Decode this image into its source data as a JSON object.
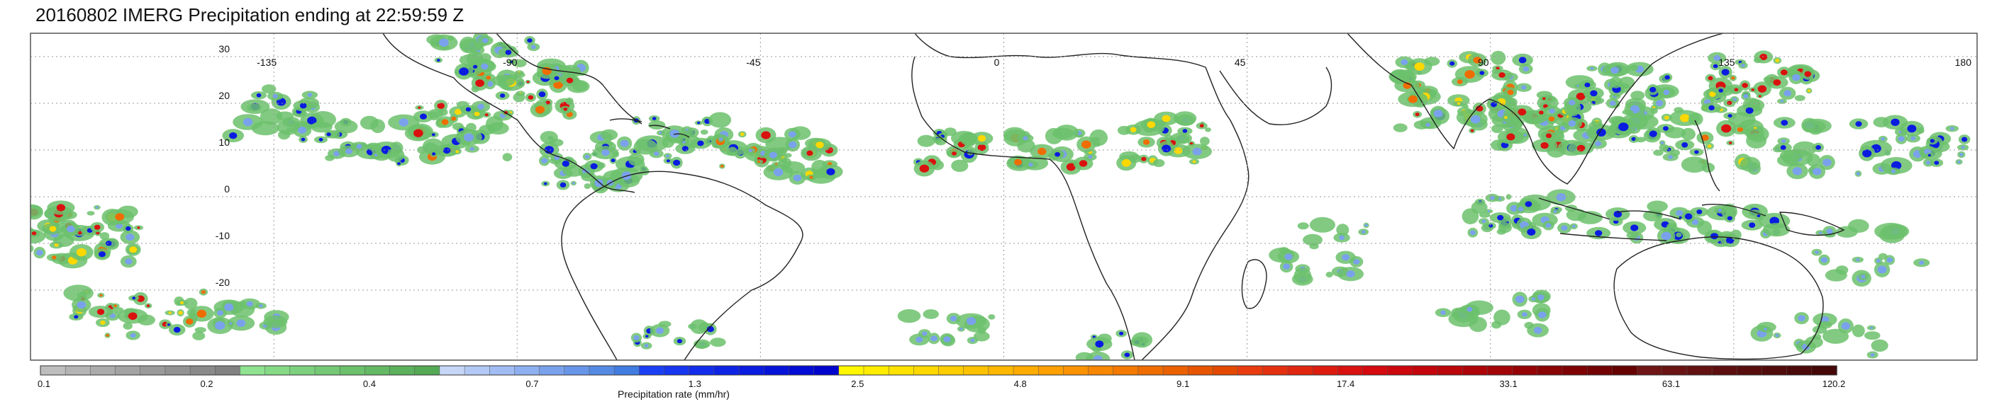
{
  "title": "20160802 IMERG Precipitation ending at 22:59:59 Z",
  "map": {
    "lat_labels": [
      "30",
      "20",
      "10",
      "0",
      "-10",
      "-20"
    ],
    "lat_values": [
      30,
      20,
      10,
      0,
      -10,
      -20
    ],
    "lon_labels": [
      "-135",
      "-90",
      "-45",
      "0",
      "45",
      "90",
      "135",
      "180"
    ],
    "lon_values": [
      -135,
      -90,
      -45,
      0,
      45,
      90,
      135,
      180
    ],
    "lon_range": [
      -180,
      180
    ],
    "lat_range": [
      -35,
      35
    ],
    "grid": "dotted"
  },
  "colorbar": {
    "label": "Precipitation rate (mm/hr)",
    "tick_labels": [
      "0.1",
      "0.2",
      "0.4",
      "0.7",
      "1.3",
      "2.5",
      "4.8",
      "9.1",
      "17.4",
      "33.1",
      "63.1",
      "120.2"
    ],
    "group_colors": [
      [
        "#bdbdbd",
        "#b4b4b4",
        "#ababab",
        "#a3a3a3",
        "#9a9a9a",
        "#929292",
        "#8a8a8a",
        "#828282"
      ],
      [
        "#8fe28f",
        "#86da86",
        "#7dd17d",
        "#75c975",
        "#6cc16c",
        "#64b964",
        "#5cb15c",
        "#54a954"
      ],
      [
        "#c6d6f7",
        "#b3c9f5",
        "#a0bcf3",
        "#8dafef",
        "#7aa2ec",
        "#6796e8",
        "#5489e4",
        "#417ce0"
      ],
      [
        "#1b3ff5",
        "#1636f0",
        "#122deb",
        "#0e24e5",
        "#0a1ce0",
        "#0614da",
        "#030cd4",
        "#0005ce"
      ],
      [
        "#fff600",
        "#ffec00",
        "#ffe200",
        "#ffd800",
        "#ffcd00",
        "#ffc200",
        "#ffb700",
        "#ffab00"
      ],
      [
        "#ff9f00",
        "#fb9200",
        "#f78600",
        "#f37900",
        "#ef6d00",
        "#eb6100",
        "#e75500",
        "#e34900"
      ],
      [
        "#e93b0f",
        "#e5300f",
        "#e1260f",
        "#dd1c0f",
        "#d9120f",
        "#d5090f",
        "#cc070d",
        "#c4050b"
      ],
      [
        "#ba0509",
        "#ae0408",
        "#a20407",
        "#960306",
        "#8a0305",
        "#7e0204",
        "#720203",
        "#660102"
      ],
      [
        "#6f1515",
        "#691313",
        "#631111",
        "#5d0f0f",
        "#570d0d",
        "#510b0b",
        "#4b0909",
        "#450707"
      ]
    ]
  },
  "legend_colors": {
    "gray": "#9a9a9a",
    "green": "#6cc16c",
    "lightblue": "#7aa2ec",
    "blue": "#0a1ce0",
    "yellow": "#ffd800",
    "orange": "#ef6d00",
    "red": "#d9120f",
    "darkred": "#8a0305",
    "maroon": "#570d0d"
  }
}
